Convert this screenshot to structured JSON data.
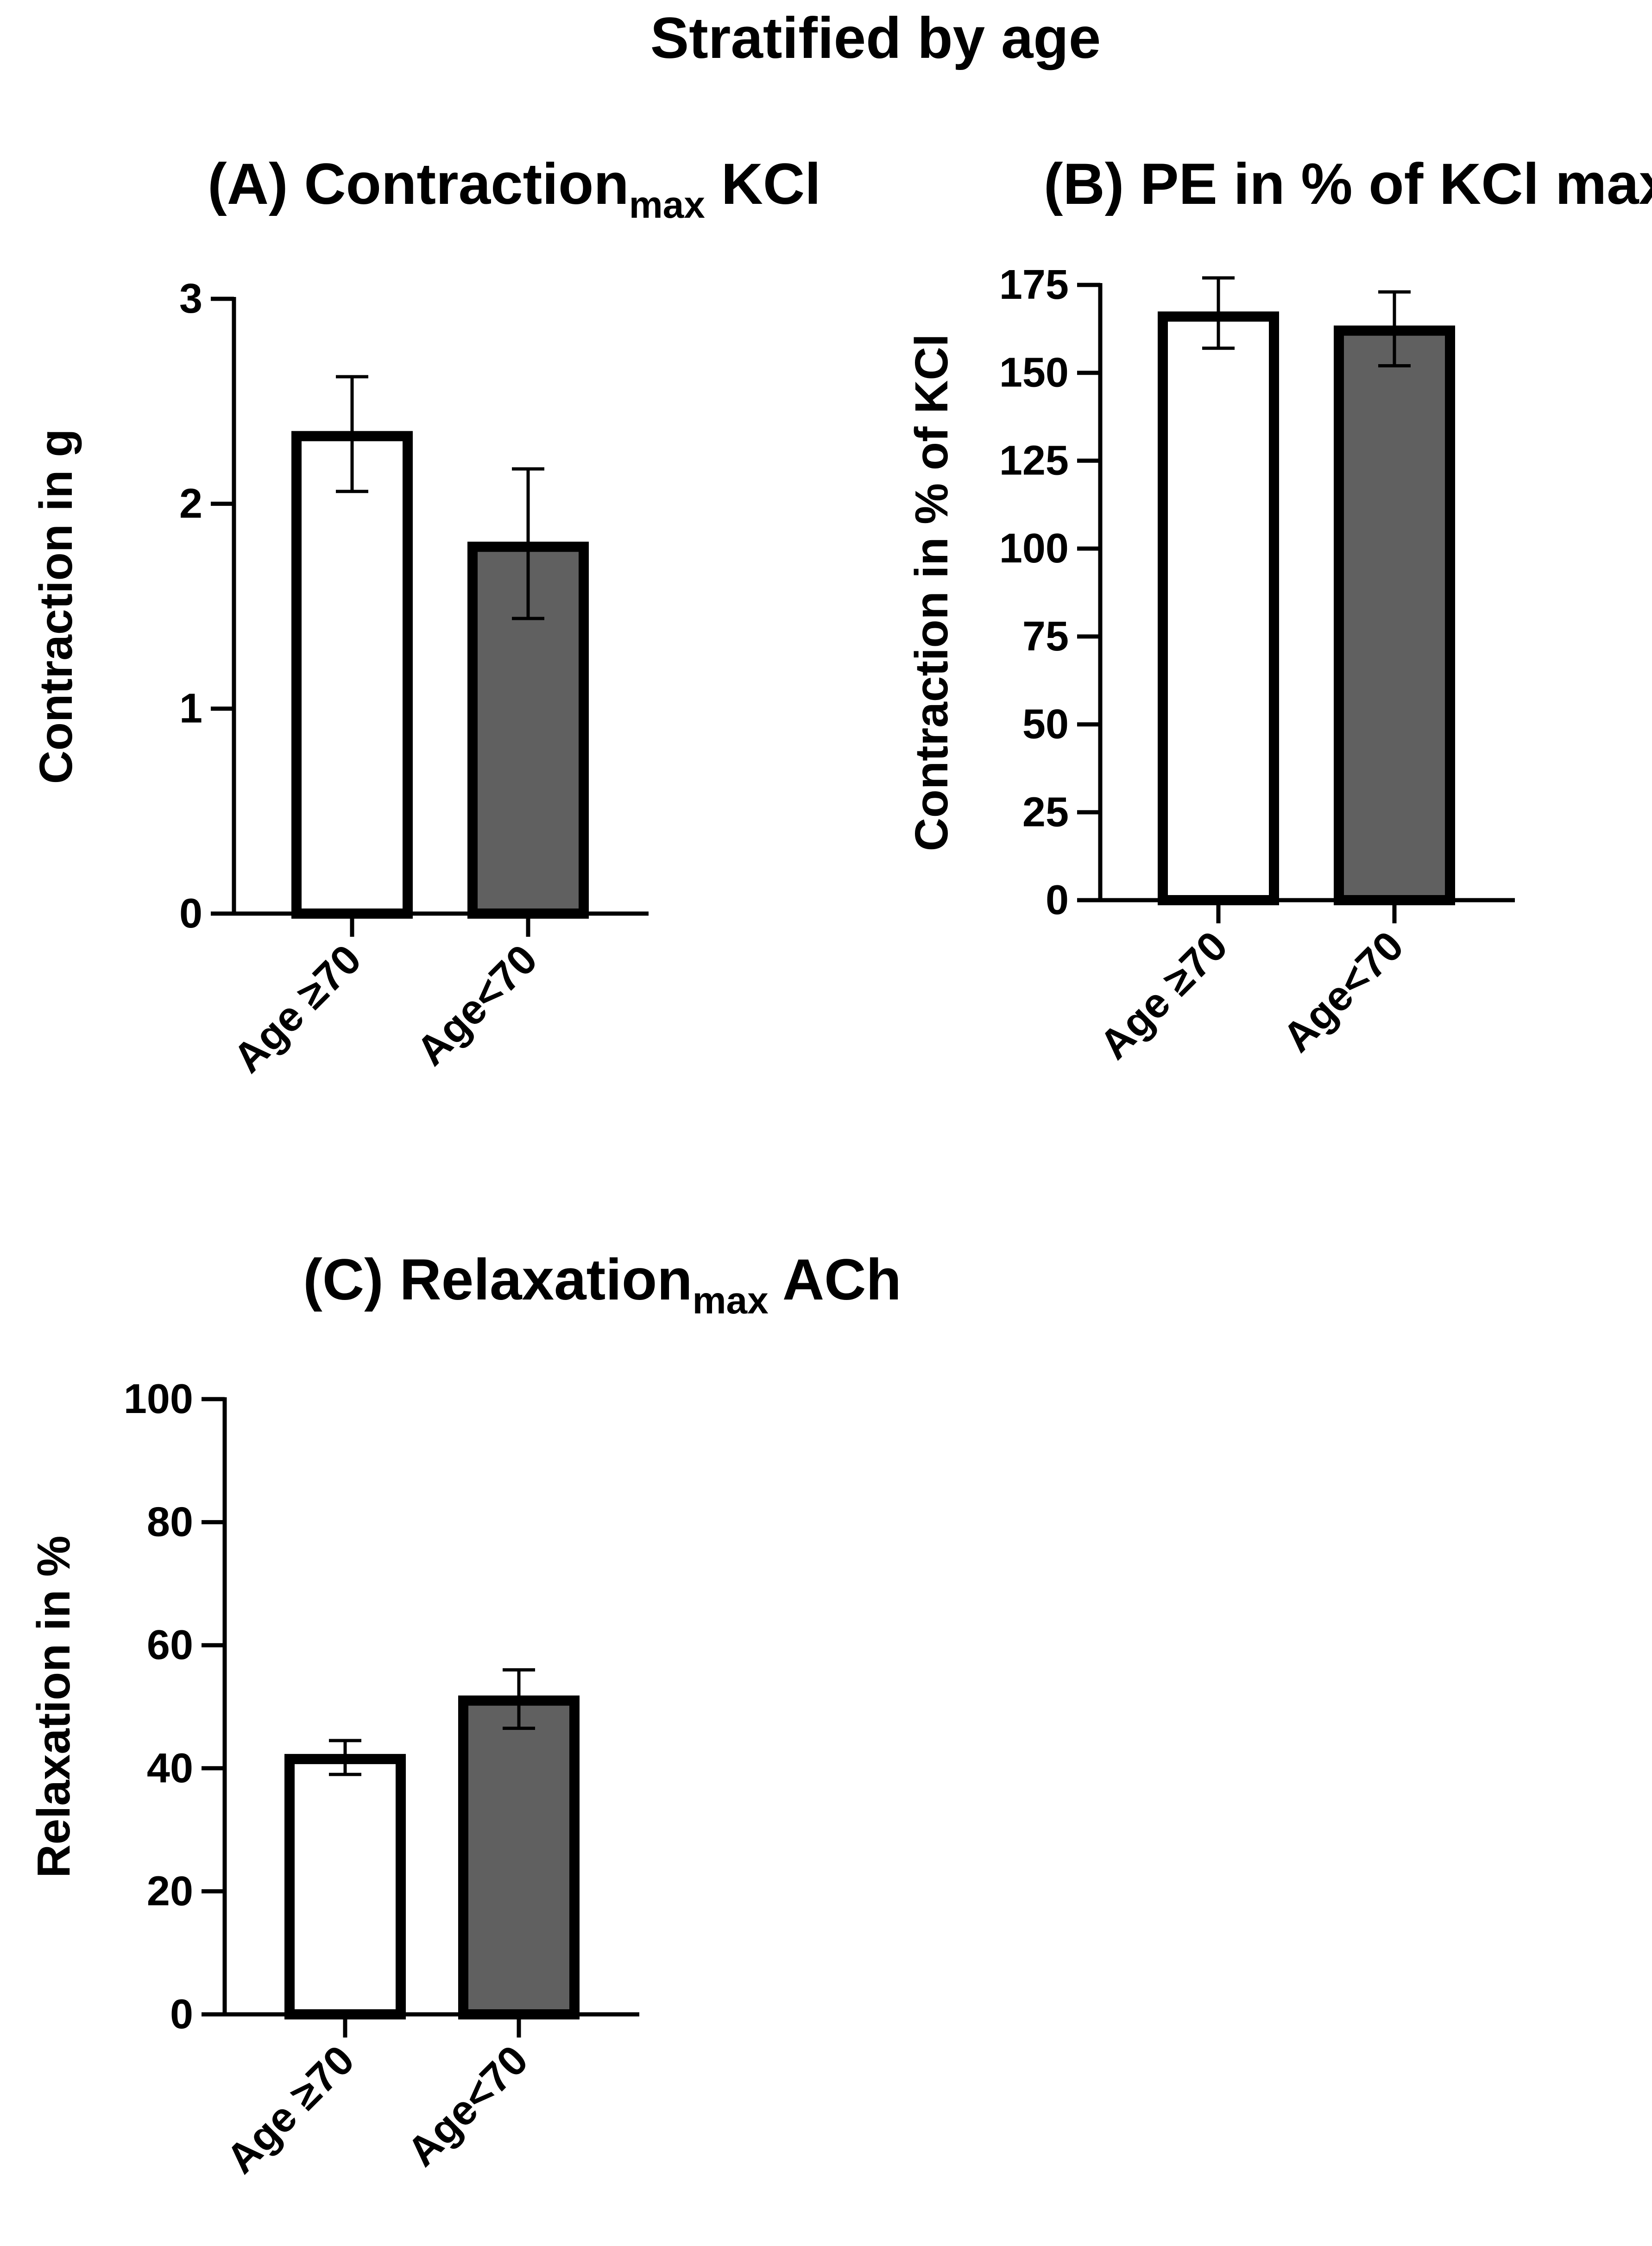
{
  "figure": {
    "title": "Stratified by age"
  },
  "colors": {
    "group1_fill": "#ffffff",
    "group2_fill": "#606060",
    "stroke": "#000000"
  },
  "chart_data": [
    {
      "type": "bar",
      "title": "(A) Contraction",
      "title_subscript": "max",
      "title_suffix": " KCl",
      "xlabel": "",
      "ylabel": "Contraction in g",
      "categories": [
        "Age ≥70",
        "Age<70"
      ],
      "values": [
        2.33,
        1.79
      ],
      "error": [
        [
          2.06,
          2.62
        ],
        [
          1.44,
          2.17
        ]
      ],
      "ylim": [
        0,
        3
      ],
      "yticks": [
        "0",
        "1",
        "2",
        "3"
      ],
      "grid": false
    },
    {
      "type": "bar",
      "title": "(B) PE in % of KCl max",
      "title_subscript": "",
      "title_suffix": "",
      "xlabel": "",
      "ylabel": "Contraction in % of KCl",
      "categories": [
        "Age ≥70",
        "Age<70"
      ],
      "values": [
        166,
        162
      ],
      "error": [
        [
          157,
          177
        ],
        [
          152,
          173
        ]
      ],
      "ylim": [
        0,
        175
      ],
      "yticks": [
        "0",
        "25",
        "50",
        "75",
        "100",
        "125",
        "150",
        "175"
      ],
      "grid": false
    },
    {
      "type": "bar",
      "title": "(C) Relaxation",
      "title_subscript": "max",
      "title_suffix": " ACh",
      "xlabel": "",
      "ylabel": "Relaxation in %",
      "categories": [
        "Age ≥70",
        "Age<70"
      ],
      "values": [
        41.5,
        51
      ],
      "error": [
        [
          39,
          44.5
        ],
        [
          46.5,
          56
        ]
      ],
      "ylim": [
        0,
        100
      ],
      "yticks": [
        "0",
        "20",
        "40",
        "60",
        "80",
        "100"
      ],
      "grid": false
    }
  ]
}
